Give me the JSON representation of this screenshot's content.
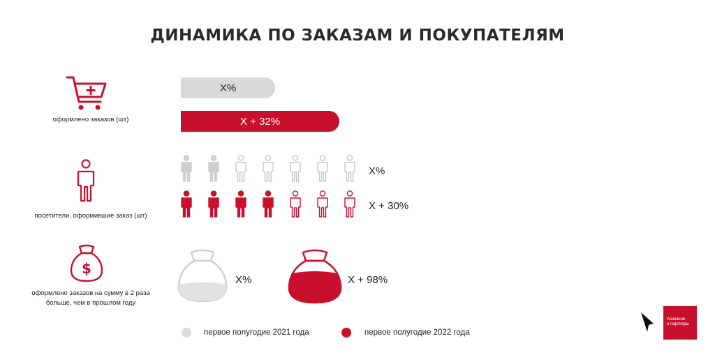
{
  "title": "ДИНАМИКА ПО ЗАКАЗАМ И ПОКУПАТЕЛЯМ",
  "rows": {
    "orders": {
      "label": "оформлено заказов (шт)",
      "bar_2021": "X%",
      "bar_2022": "X + 32%"
    },
    "visitors": {
      "label": "посетители, оформившие заказ (шт)",
      "value_2021": "X%",
      "value_2022": "X + 30%",
      "filled_2021": 2,
      "filled_2022": 4,
      "total": 7
    },
    "sum": {
      "label_line1": "оформлено заказов на сумму в 2 раза",
      "label_line2": "больше, чем в прошлом году",
      "value_2021": "X%",
      "value_2022": "X + 98%"
    }
  },
  "legend": {
    "item1": "первое полугодие 2021 года",
    "item2": "первое полугодие 2022 года"
  },
  "logo": {
    "line1": "Ашманов",
    "line2": "и партнеры"
  },
  "colors": {
    "red": "#c8102e",
    "gray": "#d9d9d9",
    "gray_outline": "#c8c8c8"
  }
}
